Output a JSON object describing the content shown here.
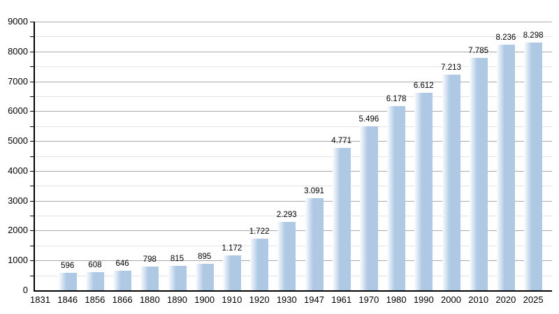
{
  "chart_data": {
    "type": "bar",
    "title": "",
    "xlabel": "",
    "ylabel": "",
    "categories": [
      "1831",
      "1846",
      "1856",
      "1866",
      "1880",
      "1890",
      "1900",
      "1910",
      "1920",
      "1930",
      "1947",
      "1961",
      "1970",
      "1980",
      "1990",
      "2000",
      "2010",
      "2020",
      "2025"
    ],
    "values": [
      null,
      596,
      608,
      646,
      798,
      815,
      895,
      1172,
      1722,
      2293,
      3091,
      4771,
      5496,
      6178,
      6612,
      7213,
      7785,
      8236,
      8298
    ],
    "value_labels": [
      "",
      "596",
      "608",
      "646",
      "798",
      "815",
      "895",
      "1.172",
      "1.722",
      "2.293",
      "3.091",
      "4.771",
      "5.496",
      "6.178",
      "6.612",
      "7.213",
      "7.785",
      "8.236",
      "8.298"
    ],
    "ylim": [
      0,
      9000
    ],
    "y_major_step": 1000,
    "y_minor_step": 500,
    "y_tick_labels": [
      "0",
      "1000",
      "2000",
      "3000",
      "4000",
      "5000",
      "6000",
      "7000",
      "8000",
      "9000"
    ],
    "grid": "major-and-minor-horizontal",
    "legend": "none",
    "colors": {
      "bar": "#afc9e5",
      "bar_gradient_left": "#fbfdfe",
      "major_grid": "#aaaaaa",
      "minor_grid": "#e3e3e3",
      "axis": "#000000",
      "text": "#000000",
      "background": "#ffffff"
    }
  }
}
